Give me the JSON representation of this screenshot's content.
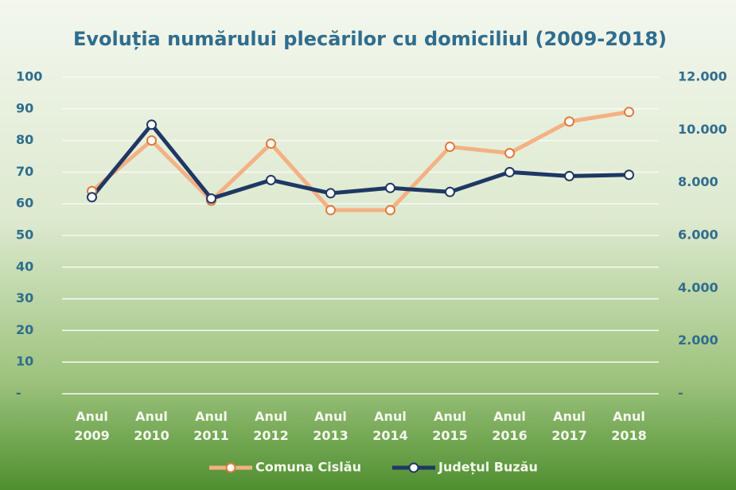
{
  "chart_data": {
    "type": "line",
    "title": "Evoluția numărului plecărilor cu domiciliul (2009-2018)",
    "categories": [
      "Anul 2009",
      "Anul 2010",
      "Anul 2011",
      "Anul 2012",
      "Anul 2013",
      "Anul 2014",
      "Anul 2015",
      "Anul 2016",
      "Anul 2017",
      "Anul 2018"
    ],
    "series": [
      {
        "name": "Comuna Cislău",
        "color": "#f4b183",
        "values": [
          64,
          80,
          61,
          79,
          58,
          58,
          78,
          76,
          86,
          89
        ]
      },
      {
        "name": "Județul Buzău",
        "color": "#1f3864",
        "axis": "y2",
        "values": [
          7450,
          10200,
          7400,
          8100,
          7600,
          7800,
          7650,
          8400,
          8250,
          8300
        ]
      }
    ],
    "ylim": [
      0,
      100
    ],
    "yticks": [
      {
        "value": 0,
        "label": "-"
      },
      10,
      20,
      30,
      40,
      50,
      60,
      70,
      80,
      90,
      100
    ],
    "y2lim": [
      0,
      12000
    ],
    "y2ticks": [
      {
        "value": 0,
        "label": "-"
      },
      {
        "value": 2000,
        "label": "2.000"
      },
      {
        "value": 4000,
        "label": "4.000"
      },
      {
        "value": 6000,
        "label": "6.000"
      },
      {
        "value": 8000,
        "label": "8.000"
      },
      {
        "value": 10000,
        "label": "10.000"
      },
      {
        "value": 12000,
        "label": "12.000"
      }
    ],
    "grid": true,
    "legend": "bottom"
  }
}
